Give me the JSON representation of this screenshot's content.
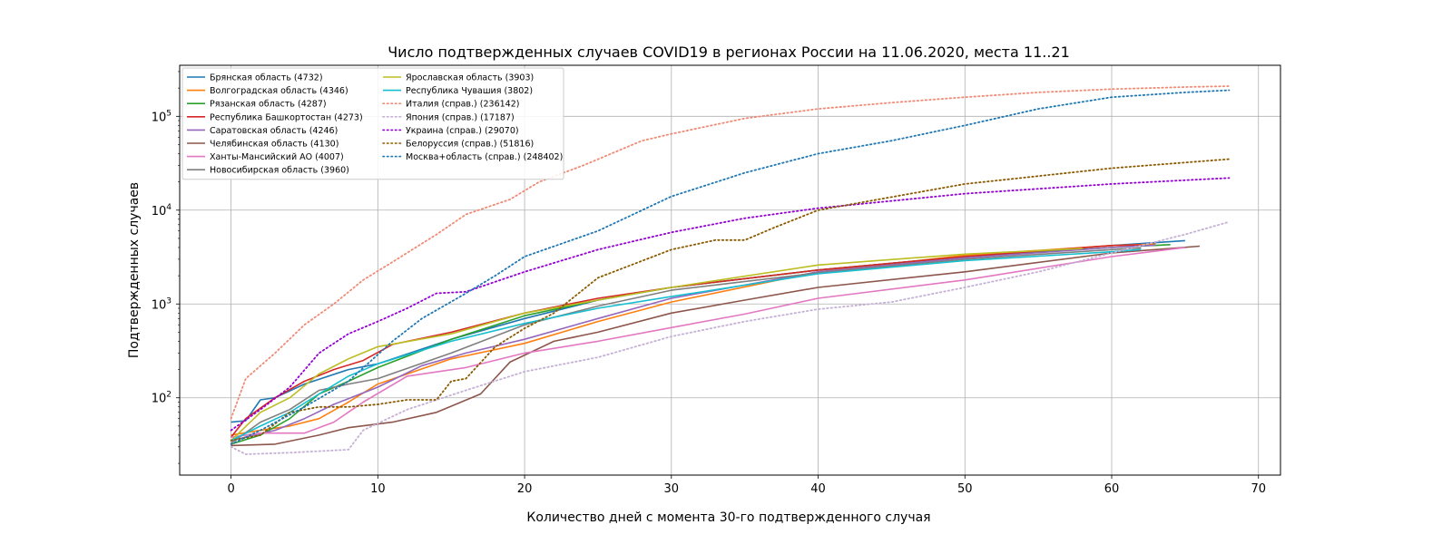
{
  "chart_data": {
    "type": "line",
    "title": "Число подтвержденных случаев COVID19 в регионах России на 11.06.2020, места 11..21",
    "xlabel": "Количество дней с момента 30-го подтвержденного случая",
    "ylabel": "Подтвержденных случаев",
    "xlim": [
      -3.5,
      71.5
    ],
    "ylim": [
      15,
      350000
    ],
    "yscale": "log",
    "grid": true,
    "legend_position": "top-left",
    "x_ticks": [
      0,
      10,
      20,
      30,
      40,
      50,
      60,
      70
    ],
    "y_ticks": [
      {
        "value": 100,
        "label_base": "10",
        "label_exp": "2"
      },
      {
        "value": 1000,
        "label_base": "10",
        "label_exp": "3"
      },
      {
        "value": 10000,
        "label_base": "10",
        "label_exp": "4"
      },
      {
        "value": 100000,
        "label_base": "10",
        "label_exp": "5"
      }
    ],
    "series": [
      {
        "name": "Брянская область (4732)",
        "color": "#1f77b4",
        "style": "solid",
        "points": [
          [
            0,
            55
          ],
          [
            1,
            57
          ],
          [
            2,
            95
          ],
          [
            3,
            100
          ],
          [
            5,
            140
          ],
          [
            8,
            200
          ],
          [
            10,
            230
          ],
          [
            15,
            420
          ],
          [
            20,
            700
          ],
          [
            25,
            1100
          ],
          [
            30,
            1500
          ],
          [
            40,
            2300
          ],
          [
            50,
            3200
          ],
          [
            60,
            4200
          ],
          [
            65,
            4732
          ]
        ]
      },
      {
        "name": "Волгоградская область (4346)",
        "color": "#ff7f0e",
        "style": "solid",
        "points": [
          [
            0,
            40
          ],
          [
            2,
            45
          ],
          [
            4,
            50
          ],
          [
            6,
            60
          ],
          [
            8,
            90
          ],
          [
            10,
            140
          ],
          [
            15,
            260
          ],
          [
            20,
            380
          ],
          [
            25,
            650
          ],
          [
            30,
            1050
          ],
          [
            40,
            2200
          ],
          [
            50,
            3300
          ],
          [
            60,
            4200
          ],
          [
            63,
            4346
          ]
        ]
      },
      {
        "name": "Рязанская область (4287)",
        "color": "#2ca02c",
        "style": "solid",
        "points": [
          [
            0,
            32
          ],
          [
            2,
            40
          ],
          [
            4,
            60
          ],
          [
            6,
            110
          ],
          [
            8,
            150
          ],
          [
            10,
            210
          ],
          [
            15,
            420
          ],
          [
            20,
            750
          ],
          [
            25,
            1100
          ],
          [
            30,
            1500
          ],
          [
            40,
            2300
          ],
          [
            50,
            3200
          ],
          [
            60,
            4000
          ],
          [
            64,
            4287
          ]
        ]
      },
      {
        "name": "Республика Башкортостан (4273)",
        "color": "#d62728",
        "style": "solid",
        "points": [
          [
            0,
            38
          ],
          [
            1,
            60
          ],
          [
            3,
            100
          ],
          [
            5,
            150
          ],
          [
            7,
            200
          ],
          [
            9,
            250
          ],
          [
            11,
            370
          ],
          [
            15,
            500
          ],
          [
            20,
            800
          ],
          [
            25,
            1150
          ],
          [
            30,
            1500
          ],
          [
            40,
            2300
          ],
          [
            50,
            3200
          ],
          [
            60,
            4200
          ],
          [
            62,
            4273
          ]
        ]
      },
      {
        "name": "Саратовская область (4246)",
        "color": "#9467bd",
        "style": "solid",
        "points": [
          [
            0,
            35
          ],
          [
            3,
            45
          ],
          [
            5,
            60
          ],
          [
            7,
            85
          ],
          [
            10,
            130
          ],
          [
            13,
            220
          ],
          [
            16,
            300
          ],
          [
            20,
            420
          ],
          [
            25,
            700
          ],
          [
            30,
            1150
          ],
          [
            40,
            2200
          ],
          [
            50,
            3100
          ],
          [
            60,
            4000
          ],
          [
            63,
            4246
          ]
        ]
      },
      {
        "name": "Челябинская область (4130)",
        "color": "#8c564b",
        "style": "solid",
        "points": [
          [
            0,
            31
          ],
          [
            3,
            32
          ],
          [
            6,
            40
          ],
          [
            8,
            48
          ],
          [
            11,
            55
          ],
          [
            14,
            70
          ],
          [
            17,
            110
          ],
          [
            19,
            240
          ],
          [
            22,
            400
          ],
          [
            25,
            500
          ],
          [
            30,
            800
          ],
          [
            35,
            1100
          ],
          [
            40,
            1500
          ],
          [
            50,
            2200
          ],
          [
            60,
            3500
          ],
          [
            66,
            4130
          ]
        ]
      },
      {
        "name": "Ханты-Мансийский АО (4007)",
        "color": "#e377c2",
        "style": "solid",
        "points": [
          [
            0,
            38
          ],
          [
            2,
            42
          ],
          [
            5,
            42
          ],
          [
            7,
            55
          ],
          [
            9,
            90
          ],
          [
            12,
            170
          ],
          [
            16,
            210
          ],
          [
            20,
            300
          ],
          [
            25,
            400
          ],
          [
            30,
            560
          ],
          [
            35,
            780
          ],
          [
            40,
            1150
          ],
          [
            50,
            1800
          ],
          [
            60,
            3200
          ],
          [
            65,
            4007
          ]
        ]
      },
      {
        "name": "Новосибирская область (3960)",
        "color": "#7f7f7f",
        "style": "solid",
        "points": [
          [
            0,
            33
          ],
          [
            2,
            55
          ],
          [
            4,
            75
          ],
          [
            6,
            120
          ],
          [
            8,
            140
          ],
          [
            10,
            160
          ],
          [
            15,
            300
          ],
          [
            20,
            600
          ],
          [
            25,
            950
          ],
          [
            30,
            1400
          ],
          [
            40,
            2150
          ],
          [
            50,
            3000
          ],
          [
            60,
            3800
          ],
          [
            62,
            3960
          ]
        ]
      },
      {
        "name": "Ярославская область (3903)",
        "color": "#bcbd22",
        "style": "solid",
        "points": [
          [
            0,
            35
          ],
          [
            2,
            70
          ],
          [
            4,
            100
          ],
          [
            6,
            180
          ],
          [
            8,
            260
          ],
          [
            10,
            350
          ],
          [
            15,
            480
          ],
          [
            20,
            800
          ],
          [
            25,
            1100
          ],
          [
            30,
            1500
          ],
          [
            40,
            2600
          ],
          [
            50,
            3400
          ],
          [
            58,
            3903
          ]
        ]
      },
      {
        "name": "Республика Чувашия (3802)",
        "color": "#17becf",
        "style": "solid",
        "points": [
          [
            0,
            35
          ],
          [
            2,
            50
          ],
          [
            4,
            70
          ],
          [
            6,
            110
          ],
          [
            8,
            170
          ],
          [
            10,
            230
          ],
          [
            15,
            400
          ],
          [
            20,
            620
          ],
          [
            25,
            900
          ],
          [
            30,
            1200
          ],
          [
            40,
            2100
          ],
          [
            50,
            2900
          ],
          [
            60,
            3600
          ],
          [
            62,
            3802
          ]
        ]
      },
      {
        "name": "Италия (справ.) (236142)",
        "color": "#f08a75",
        "style": "dotted",
        "points": [
          [
            0,
            60
          ],
          [
            1,
            160
          ],
          [
            3,
            300
          ],
          [
            5,
            600
          ],
          [
            7,
            1000
          ],
          [
            9,
            1800
          ],
          [
            11,
            2800
          ],
          [
            14,
            5500
          ],
          [
            16,
            9000
          ],
          [
            19,
            13000
          ],
          [
            21,
            20000
          ],
          [
            24,
            30000
          ],
          [
            28,
            55000
          ],
          [
            30,
            65000
          ],
          [
            35,
            95000
          ],
          [
            40,
            120000
          ],
          [
            45,
            140000
          ],
          [
            50,
            160000
          ],
          [
            55,
            180000
          ],
          [
            60,
            195000
          ],
          [
            65,
            205000
          ],
          [
            68,
            210000
          ]
        ]
      },
      {
        "name": "Япония (справ.) (17187)",
        "color": "#c5b0d5",
        "style": "dotted",
        "points": [
          [
            0,
            30
          ],
          [
            1,
            25
          ],
          [
            4,
            26
          ],
          [
            8,
            28
          ],
          [
            9,
            45
          ],
          [
            12,
            75
          ],
          [
            16,
            120
          ],
          [
            20,
            190
          ],
          [
            25,
            270
          ],
          [
            30,
            450
          ],
          [
            35,
            650
          ],
          [
            40,
            880
          ],
          [
            45,
            1050
          ],
          [
            50,
            1500
          ],
          [
            55,
            2200
          ],
          [
            60,
            3500
          ],
          [
            65,
            5500
          ],
          [
            68,
            7500
          ]
        ]
      },
      {
        "name": "Украина (справ.) (29070)",
        "color": "#9400d3",
        "style": "dotted",
        "points": [
          [
            0,
            45
          ],
          [
            2,
            75
          ],
          [
            4,
            130
          ],
          [
            6,
            300
          ],
          [
            8,
            480
          ],
          [
            10,
            650
          ],
          [
            12,
            900
          ],
          [
            14,
            1300
          ],
          [
            16,
            1350
          ],
          [
            20,
            2200
          ],
          [
            25,
            3800
          ],
          [
            30,
            5800
          ],
          [
            35,
            8200
          ],
          [
            40,
            10500
          ],
          [
            50,
            15000
          ],
          [
            60,
            19000
          ],
          [
            68,
            22000
          ]
        ]
      },
      {
        "name": "Белоруссия (справ.) (51816)",
        "color": "#8b5a00",
        "style": "dotted",
        "points": [
          [
            0,
            35
          ],
          [
            2,
            40
          ],
          [
            4,
            70
          ],
          [
            6,
            80
          ],
          [
            8,
            80
          ],
          [
            10,
            85
          ],
          [
            12,
            95
          ],
          [
            14,
            95
          ],
          [
            15,
            150
          ],
          [
            16,
            160
          ],
          [
            18,
            350
          ],
          [
            20,
            550
          ],
          [
            22,
            800
          ],
          [
            25,
            1900
          ],
          [
            30,
            3800
          ],
          [
            33,
            4800
          ],
          [
            35,
            4800
          ],
          [
            37,
            6500
          ],
          [
            40,
            10000
          ],
          [
            50,
            19000
          ],
          [
            60,
            28000
          ],
          [
            68,
            35000
          ]
        ]
      },
      {
        "name": "Москва+область (справ.) (248402)",
        "color": "#1f77b4",
        "style": "dotted",
        "points": [
          [
            0,
            32
          ],
          [
            2,
            45
          ],
          [
            5,
            80
          ],
          [
            8,
            150
          ],
          [
            11,
            400
          ],
          [
            13,
            700
          ],
          [
            16,
            1300
          ],
          [
            18,
            2000
          ],
          [
            20,
            3200
          ],
          [
            25,
            6000
          ],
          [
            30,
            14000
          ],
          [
            35,
            25000
          ],
          [
            40,
            40000
          ],
          [
            45,
            55000
          ],
          [
            50,
            80000
          ],
          [
            55,
            120000
          ],
          [
            60,
            160000
          ],
          [
            65,
            180000
          ],
          [
            68,
            190000
          ]
        ]
      }
    ]
  }
}
